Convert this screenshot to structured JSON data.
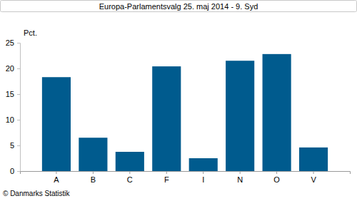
{
  "chart_data": {
    "type": "bar",
    "title": "Europa-Parlamentsvalg 25. maj 2014 - 9. Syd",
    "ylabel": "Pct.",
    "annotations": [
      "© Danmarks Statistik"
    ],
    "categories": [
      "A",
      "B",
      "C",
      "F",
      "I",
      "N",
      "O",
      "V"
    ],
    "values": [
      18.3,
      6.5,
      3.75,
      20.4,
      2.5,
      21.5,
      22.8,
      4.6
    ],
    "color": "#005b8e",
    "ylim": [
      0,
      25
    ],
    "yticks": [
      0,
      5,
      10,
      15,
      20,
      25
    ],
    "grid": false
  }
}
